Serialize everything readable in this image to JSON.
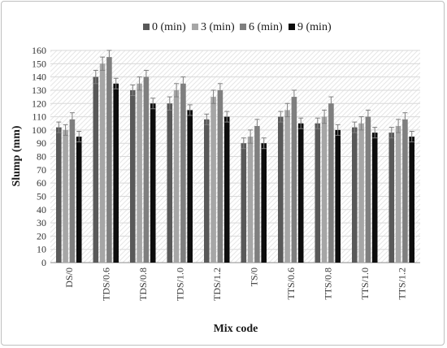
{
  "chart_data": {
    "type": "bar",
    "title": "",
    "xlabel": "Mix code",
    "ylabel": "Slump (mm)",
    "ylim": [
      0,
      160
    ],
    "ytick_step": 10,
    "grid": true,
    "legend_position": "top-center",
    "categories": [
      "DS/0",
      "TDS/0.6",
      "TDS/0.8",
      "TDS/1.0",
      "TDS/1.2",
      "TS/0",
      "TTS/0.6",
      "TTS/0.8",
      "TTS/1.0",
      "TTS/1.2"
    ],
    "series": [
      {
        "name": "0 (min)",
        "color": "#595959",
        "values": [
          102,
          140,
          130,
          120,
          108,
          90,
          110,
          105,
          102,
          98
        ],
        "errors": [
          4,
          5,
          4,
          5,
          4,
          4,
          4,
          4,
          4,
          4
        ]
      },
      {
        "name": "3 (min)",
        "color": "#a6a6a6",
        "values": [
          100,
          150,
          135,
          130,
          125,
          95,
          115,
          110,
          105,
          103
        ],
        "errors": [
          4,
          5,
          5,
          5,
          5,
          5,
          5,
          5,
          5,
          5
        ]
      },
      {
        "name": "6 (min)",
        "color": "#7f7f7f",
        "values": [
          108,
          155,
          140,
          135,
          130,
          103,
          125,
          120,
          110,
          108
        ],
        "errors": [
          5,
          5,
          5,
          5,
          5,
          5,
          5,
          5,
          5,
          5
        ]
      },
      {
        "name": "9 (min)",
        "color": "#0d0d0d",
        "values": [
          95,
          135,
          120,
          115,
          110,
          90,
          105,
          100,
          98,
          95
        ],
        "errors": [
          4,
          4,
          4,
          4,
          4,
          4,
          4,
          4,
          4,
          4
        ]
      }
    ]
  }
}
